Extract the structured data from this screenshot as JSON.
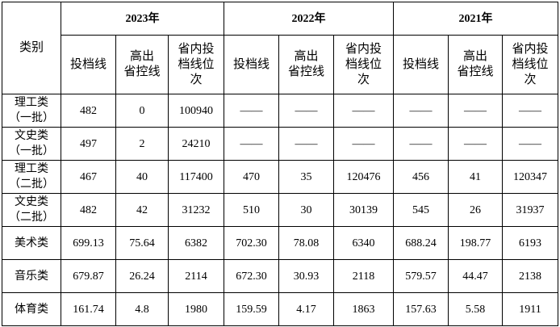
{
  "table": {
    "header": {
      "category": "类别",
      "years": [
        {
          "label": "2023年",
          "columns": [
            "投档线",
            "高出\n省控线",
            "省内投\n档线位\n次"
          ]
        },
        {
          "label": "2022年",
          "columns": [
            "投档线",
            "高出\n省控线",
            "省内投\n档线位\n次"
          ]
        },
        {
          "label": "2021年",
          "columns": [
            "投档线",
            "高出\n省控线",
            "省内投\n档线位\n次"
          ]
        }
      ]
    },
    "rows": [
      [
        "理工类\n（一批）",
        "482",
        "0",
        "100940",
        "——",
        "——",
        "——",
        "——",
        "——",
        "——"
      ],
      [
        "文史类\n（一批）",
        "497",
        "2",
        "24210",
        "——",
        "——",
        "——",
        "——",
        "——",
        "——"
      ],
      [
        "理工类\n（二批）",
        "467",
        "40",
        "117400",
        "470",
        "35",
        "120476",
        "456",
        "41",
        "120347"
      ],
      [
        "文史类\n（二批）",
        "482",
        "42",
        "31232",
        "510",
        "30",
        "30139",
        "545",
        "26",
        "31937"
      ],
      [
        "美术类",
        "699.13",
        "75.64",
        "6382",
        "702.30",
        "78.08",
        "6340",
        "688.24",
        "198.77",
        "6193"
      ],
      [
        "音乐类",
        "679.87",
        "26.24",
        "2114",
        "672.30",
        "30.93",
        "2118",
        "579.57",
        "44.47",
        "2138"
      ],
      [
        "体育类",
        "161.74",
        "4.8",
        "1980",
        "159.59",
        "4.17",
        "1863",
        "157.63",
        "5.58",
        "1911"
      ]
    ]
  }
}
